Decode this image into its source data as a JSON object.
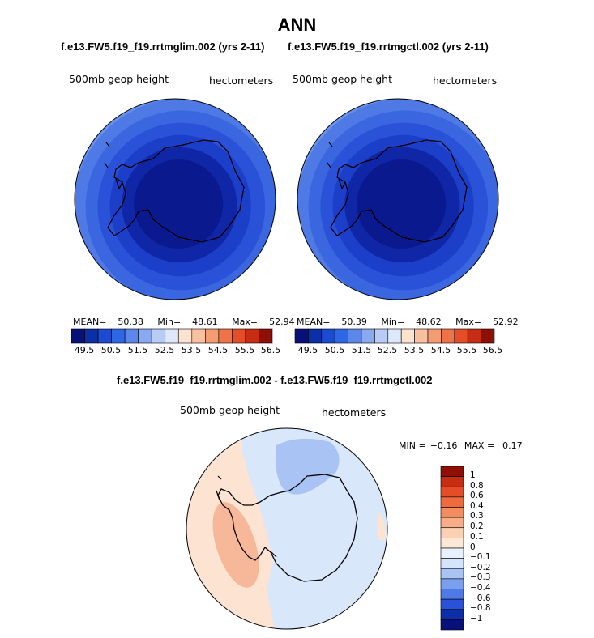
{
  "title": "ANN",
  "panels": [
    {
      "case_title": "f.e13.FW5.f19_f19.rrtmglim.002 (yrs 2-11)",
      "variable": "500mb geop height",
      "units": "hectometers",
      "stats": {
        "mean_label": "MEAN=",
        "mean": "50.38",
        "min_label": "Min=",
        "min": "48.61",
        "max_label": "Max=",
        "max": "52.94"
      }
    },
    {
      "case_title": "f.e13.FW5.f19_f19.rrtmgctl.002 (yrs 2-11)",
      "variable": "500mb geop height",
      "units": "hectometers",
      "stats": {
        "mean_label": "MEAN=",
        "mean": "50.39",
        "min_label": "Min=",
        "min": "48.62",
        "max_label": "Max=",
        "max": "52.92"
      }
    }
  ],
  "colorbar_top": {
    "ticks": [
      "49.5",
      "50.5",
      "51.5",
      "52.5",
      "53.5",
      "54.5",
      "55.5",
      "56.5"
    ],
    "colors": [
      "#08117a",
      "#0a2fa6",
      "#1a4bd0",
      "#2f66e3",
      "#5b86ea",
      "#8aa9f0",
      "#b6cbf6",
      "#dde8fb",
      "#fde2d0",
      "#f9c1a1",
      "#f59b72",
      "#ef7348",
      "#e44d27",
      "#c62d12",
      "#8e0f05"
    ]
  },
  "difference": {
    "title": "f.e13.FW5.f19_f19.rrtmglim.002 - f.e13.FW5.f19_f19.rrtmgctl.002",
    "variable": "500mb geop height",
    "units": "hectometers",
    "min_label": "MIN =",
    "min": "−0.16",
    "max_label": "MAX =",
    "max": "0.17",
    "colorbar": {
      "ticks": [
        "1",
        "0.8",
        "0.6",
        "0.4",
        "0.3",
        "0.2",
        "0.1",
        "0",
        "−0.1",
        "−0.2",
        "−0.3",
        "−0.4",
        "−0.6",
        "−0.8",
        "−1"
      ],
      "colors": [
        "#8e0f05",
        "#c62d12",
        "#e44d27",
        "#ef6b3f",
        "#f38c5e",
        "#f7ae88",
        "#fbd0b3",
        "#fde8d8",
        "#e8f0fb",
        "#d4e4fb",
        "#a8c3f4",
        "#7a9fee",
        "#4f7ae6",
        "#2a52d8",
        "#0c2ea8",
        "#08117a"
      ]
    }
  },
  "colors": {
    "map_ring_colors": [
      "#dfe9fb",
      "#b9cef6",
      "#8eaef1",
      "#6a92ec",
      "#4f7ae6",
      "#3a66e0",
      "#2a52d8",
      "#1c3fc9",
      "#0f26a6",
      "#0a1a8e"
    ],
    "diff_positive": "#fde3d2",
    "diff_positive_strong": "#f6b898",
    "diff_negative": "#d9e7fb",
    "diff_negative_strong": "#a8c3f4"
  }
}
